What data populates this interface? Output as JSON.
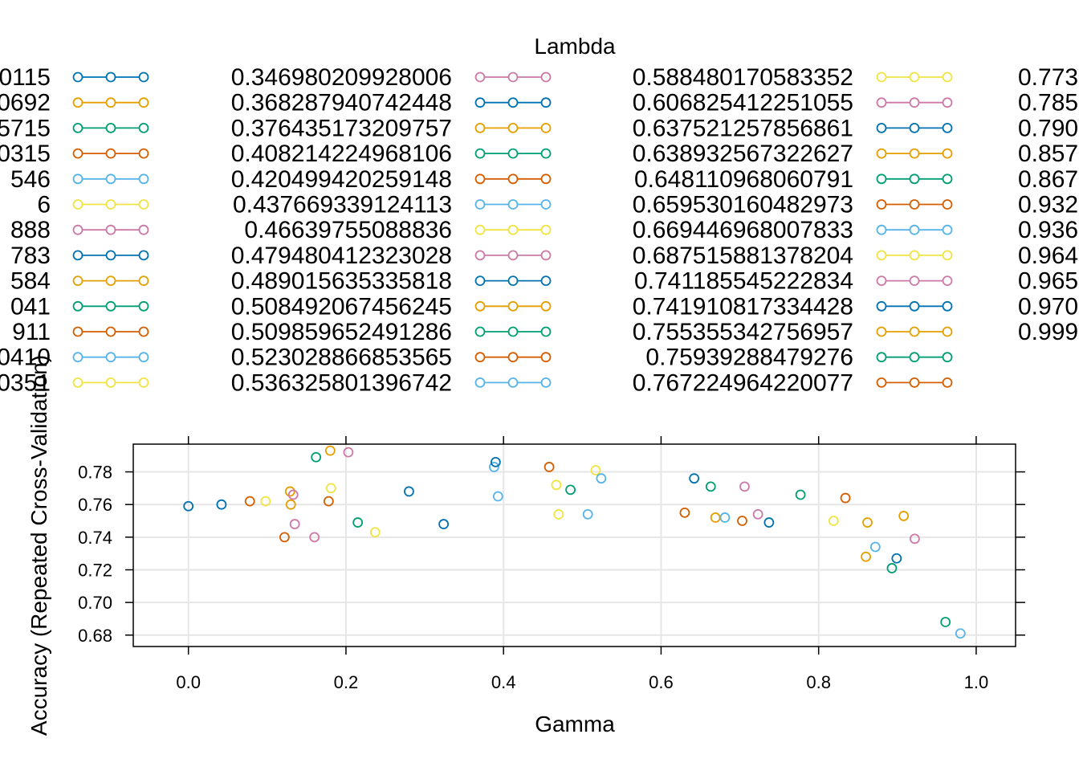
{
  "chart_data": {
    "type": "scatter",
    "title": "",
    "xlabel": "Gamma",
    "ylabel": "Accuracy (Repeated Cross-Validation)",
    "legend_title": "Lambda",
    "legend_placement": "top",
    "xlim": [
      -0.07,
      1.05
    ],
    "ylim": [
      0.673,
      0.797
    ],
    "xticks": [
      "0.0",
      "0.2",
      "0.4",
      "0.6",
      "0.8",
      "1.0"
    ],
    "yticks": [
      "0.68",
      "0.70",
      "0.72",
      "0.74",
      "0.76",
      "0.78"
    ],
    "grid": true,
    "palette": [
      "#0072B2",
      "#E69F00",
      "#009E73",
      "#D55E00",
      "#56B4E9",
      "#F0E442",
      "#CC79A7"
    ],
    "legend_columns": [
      [
        "0115",
        "0692",
        "5715",
        "0315",
        "546",
        "6",
        "888",
        "783",
        "584",
        "041",
        "911",
        "0410",
        "0351"
      ],
      [
        "0.346980209928006",
        "0.368287940742448",
        "0.376435173209757",
        "0.408214224968106",
        "0.420499420259148",
        "0.437669339124113",
        "0.46639755088836",
        "0.479480412323028",
        "0.489015635335818",
        "0.508492067456245",
        "0.509859652491286",
        "0.523028866853565",
        "0.536325801396742"
      ],
      [
        "0.588480170583352",
        "0.606825412251055",
        "0.637521257856861",
        "0.638932567322627",
        "0.648110968060791",
        "0.659530160482973",
        "0.669446968007833",
        "0.687515881378204",
        "0.741185545222834",
        "0.741910817334428",
        "0.755355342756957",
        "0.75939288479276",
        "0.767224964220077"
      ],
      [
        "0.773",
        "0.785",
        "0.790",
        "0.857",
        "0.867",
        "0.932",
        "0.936",
        "0.964",
        "0.965",
        "0.970",
        "0.999"
      ]
    ],
    "points": [
      {
        "x": 0.0,
        "y": 0.759,
        "c": "#0072B2"
      },
      {
        "x": 0.042,
        "y": 0.76,
        "c": "#0072B2"
      },
      {
        "x": 0.078,
        "y": 0.762,
        "c": "#D55E00"
      },
      {
        "x": 0.098,
        "y": 0.762,
        "c": "#F0E442"
      },
      {
        "x": 0.122,
        "y": 0.74,
        "c": "#D55E00"
      },
      {
        "x": 0.129,
        "y": 0.768,
        "c": "#E69F00"
      },
      {
        "x": 0.13,
        "y": 0.76,
        "c": "#E69F00"
      },
      {
        "x": 0.133,
        "y": 0.766,
        "c": "#CC79A7"
      },
      {
        "x": 0.135,
        "y": 0.748,
        "c": "#CC79A7"
      },
      {
        "x": 0.16,
        "y": 0.74,
        "c": "#CC79A7"
      },
      {
        "x": 0.162,
        "y": 0.789,
        "c": "#009E73"
      },
      {
        "x": 0.178,
        "y": 0.762,
        "c": "#D55E00"
      },
      {
        "x": 0.18,
        "y": 0.793,
        "c": "#E69F00"
      },
      {
        "x": 0.181,
        "y": 0.77,
        "c": "#F0E442"
      },
      {
        "x": 0.203,
        "y": 0.792,
        "c": "#CC79A7"
      },
      {
        "x": 0.215,
        "y": 0.749,
        "c": "#009E73"
      },
      {
        "x": 0.237,
        "y": 0.743,
        "c": "#F0E442"
      },
      {
        "x": 0.28,
        "y": 0.768,
        "c": "#0072B2"
      },
      {
        "x": 0.324,
        "y": 0.748,
        "c": "#0072B2"
      },
      {
        "x": 0.388,
        "y": 0.783,
        "c": "#56B4E9"
      },
      {
        "x": 0.39,
        "y": 0.786,
        "c": "#0072B2"
      },
      {
        "x": 0.393,
        "y": 0.765,
        "c": "#56B4E9"
      },
      {
        "x": 0.458,
        "y": 0.783,
        "c": "#D55E00"
      },
      {
        "x": 0.467,
        "y": 0.772,
        "c": "#F0E442"
      },
      {
        "x": 0.47,
        "y": 0.754,
        "c": "#F0E442"
      },
      {
        "x": 0.485,
        "y": 0.769,
        "c": "#009E73"
      },
      {
        "x": 0.507,
        "y": 0.754,
        "c": "#56B4E9"
      },
      {
        "x": 0.517,
        "y": 0.781,
        "c": "#F0E442"
      },
      {
        "x": 0.524,
        "y": 0.776,
        "c": "#56B4E9"
      },
      {
        "x": 0.63,
        "y": 0.755,
        "c": "#D55E00"
      },
      {
        "x": 0.642,
        "y": 0.776,
        "c": "#0072B2"
      },
      {
        "x": 0.663,
        "y": 0.771,
        "c": "#009E73"
      },
      {
        "x": 0.669,
        "y": 0.752,
        "c": "#E69F00"
      },
      {
        "x": 0.681,
        "y": 0.752,
        "c": "#56B4E9"
      },
      {
        "x": 0.703,
        "y": 0.75,
        "c": "#D55E00"
      },
      {
        "x": 0.706,
        "y": 0.771,
        "c": "#CC79A7"
      },
      {
        "x": 0.723,
        "y": 0.754,
        "c": "#CC79A7"
      },
      {
        "x": 0.737,
        "y": 0.749,
        "c": "#0072B2"
      },
      {
        "x": 0.777,
        "y": 0.766,
        "c": "#009E73"
      },
      {
        "x": 0.819,
        "y": 0.75,
        "c": "#F0E442"
      },
      {
        "x": 0.834,
        "y": 0.764,
        "c": "#D55E00"
      },
      {
        "x": 0.86,
        "y": 0.728,
        "c": "#E69F00"
      },
      {
        "x": 0.862,
        "y": 0.749,
        "c": "#E69F00"
      },
      {
        "x": 0.872,
        "y": 0.734,
        "c": "#56B4E9"
      },
      {
        "x": 0.893,
        "y": 0.721,
        "c": "#009E73"
      },
      {
        "x": 0.899,
        "y": 0.727,
        "c": "#0072B2"
      },
      {
        "x": 0.908,
        "y": 0.753,
        "c": "#E69F00"
      },
      {
        "x": 0.922,
        "y": 0.739,
        "c": "#CC79A7"
      },
      {
        "x": 0.961,
        "y": 0.688,
        "c": "#009E73"
      },
      {
        "x": 0.98,
        "y": 0.681,
        "c": "#56B4E9"
      }
    ]
  }
}
